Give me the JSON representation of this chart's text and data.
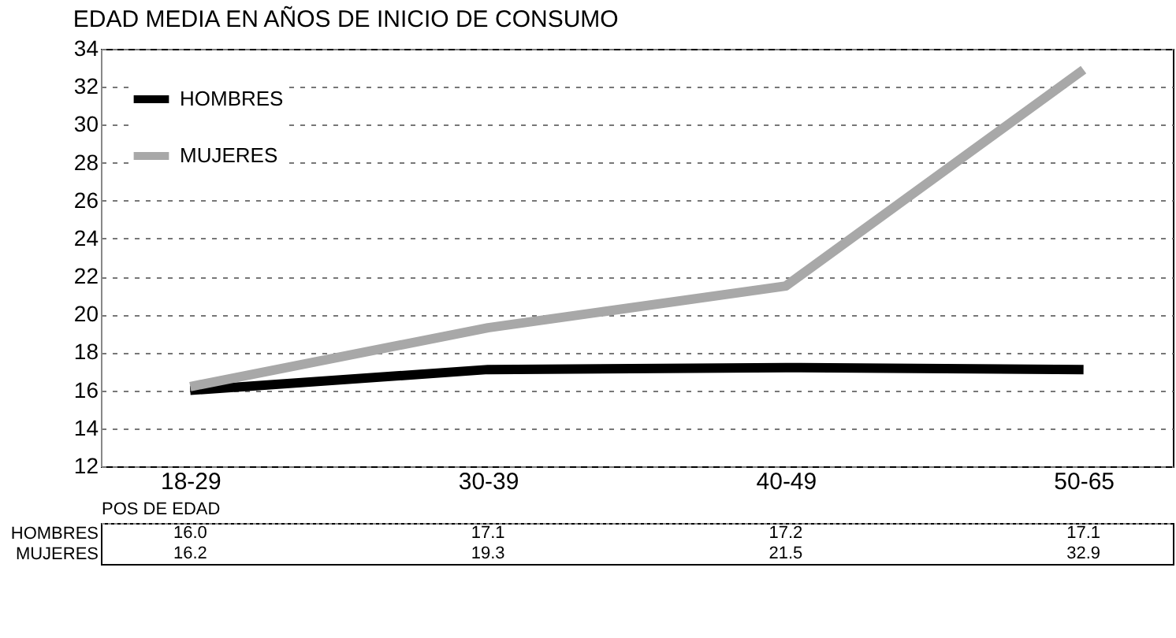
{
  "chart_data": {
    "type": "line",
    "title": "EDAD MEDIA EN AÑOS DE INICIO DE CONSUMO",
    "xlabel": "POS DE EDAD",
    "categories": [
      "18-29",
      "30-39",
      "40-49",
      "50-65"
    ],
    "series": [
      {
        "name": "HOMBRES",
        "color": "#000000",
        "values": [
          16.0,
          17.1,
          17.2,
          17.1
        ],
        "value_labels": [
          "16.0",
          "17.1",
          "17.2",
          "17.1"
        ]
      },
      {
        "name": "MUJERES",
        "color": "#a8a8a8",
        "values": [
          16.2,
          19.3,
          21.5,
          32.9
        ],
        "value_labels": [
          "16.2",
          "19.3",
          "21.5",
          "32.9"
        ]
      }
    ],
    "ylim": [
      12,
      34
    ],
    "yticks": [
      12,
      14,
      16,
      18,
      20,
      22,
      24,
      26,
      28,
      30,
      32,
      34
    ],
    "grid": "y",
    "legend": "top left",
    "marker": "none",
    "line_style": "solid"
  }
}
